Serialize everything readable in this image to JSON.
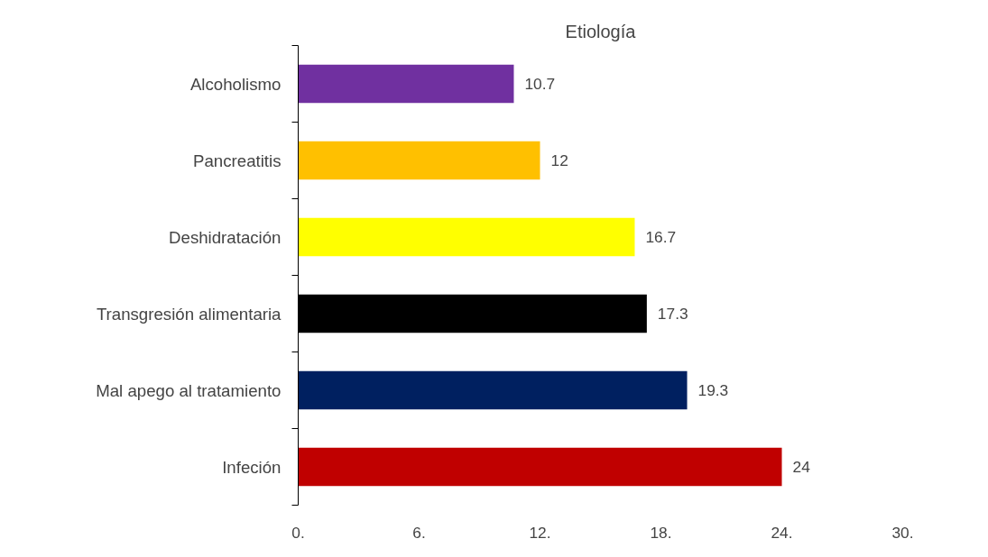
{
  "chart_data": {
    "type": "bar",
    "orientation": "horizontal",
    "title": "Etiología",
    "categories": [
      "Alcoholismo",
      "Pancreatitis",
      "Deshidratación",
      "Transgresión alimentaria",
      "Mal apego al tratamiento",
      "Infeción"
    ],
    "values": [
      10.7,
      12,
      16.7,
      17.3,
      19.3,
      24
    ],
    "colors": [
      "#7030a0",
      "#ffc000",
      "#ffff00",
      "#000000",
      "#002060",
      "#c00000"
    ],
    "data_labels": true,
    "grid": false,
    "xlim": [
      0,
      30
    ],
    "xticks": [
      {
        "value": 0,
        "label": "0."
      },
      {
        "value": 6,
        "label": "6."
      },
      {
        "value": 12,
        "label": "12."
      },
      {
        "value": 18,
        "label": "18."
      },
      {
        "value": 24,
        "label": "24."
      },
      {
        "value": 30,
        "label": "30."
      }
    ]
  }
}
